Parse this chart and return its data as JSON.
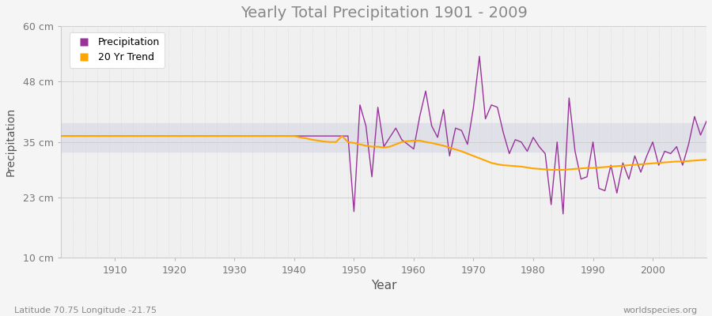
{
  "title": "Yearly Total Precipitation 1901 - 2009",
  "ylabel": "Precipitation",
  "xlabel": "Year",
  "subtitle_left": "Latitude 70.75 Longitude -21.75",
  "subtitle_right": "worldspecies.org",
  "bg_color": "#f5f5f5",
  "plot_bg_color": "#f0f0f0",
  "band_color": "#e0e0e8",
  "precip_color": "#993399",
  "trend_color": "#FFA500",
  "ylim": [
    10,
    60
  ],
  "yticks": [
    10,
    23,
    35,
    48,
    60
  ],
  "ytick_labels": [
    "10 cm",
    "23 cm",
    "35 cm",
    "48 cm",
    "60 cm"
  ],
  "xlim": [
    1901,
    2009
  ],
  "xticks": [
    1910,
    1920,
    1930,
    1940,
    1950,
    1960,
    1970,
    1980,
    1990,
    2000
  ],
  "years": [
    1901,
    1902,
    1903,
    1904,
    1905,
    1906,
    1907,
    1908,
    1909,
    1910,
    1911,
    1912,
    1913,
    1914,
    1915,
    1916,
    1917,
    1918,
    1919,
    1920,
    1921,
    1922,
    1923,
    1924,
    1925,
    1926,
    1927,
    1928,
    1929,
    1930,
    1931,
    1932,
    1933,
    1934,
    1935,
    1936,
    1937,
    1938,
    1939,
    1940,
    1941,
    1942,
    1943,
    1944,
    1945,
    1946,
    1947,
    1948,
    1949,
    1950,
    1951,
    1952,
    1953,
    1954,
    1955,
    1956,
    1957,
    1958,
    1959,
    1960,
    1961,
    1962,
    1963,
    1964,
    1965,
    1966,
    1967,
    1968,
    1969,
    1970,
    1971,
    1972,
    1973,
    1974,
    1975,
    1976,
    1977,
    1978,
    1979,
    1980,
    1981,
    1982,
    1983,
    1984,
    1985,
    1986,
    1987,
    1988,
    1989,
    1990,
    1991,
    1992,
    1993,
    1994,
    1995,
    1996,
    1997,
    1998,
    1999,
    2000,
    2001,
    2002,
    2003,
    2004,
    2005,
    2006,
    2007,
    2008,
    2009
  ],
  "precip": [
    36.3,
    36.3,
    36.3,
    36.3,
    36.3,
    36.3,
    36.3,
    36.3,
    36.3,
    36.3,
    36.3,
    36.3,
    36.3,
    36.3,
    36.3,
    36.3,
    36.3,
    36.3,
    36.3,
    36.3,
    36.3,
    36.3,
    36.3,
    36.3,
    36.3,
    36.3,
    36.3,
    36.3,
    36.3,
    36.3,
    36.3,
    36.3,
    36.3,
    36.3,
    36.3,
    36.3,
    36.3,
    36.3,
    36.3,
    36.3,
    36.3,
    36.3,
    36.3,
    36.3,
    36.3,
    36.3,
    36.3,
    36.3,
    36.3,
    20.0,
    43.0,
    38.5,
    27.5,
    42.5,
    34.0,
    36.0,
    38.0,
    35.5,
    34.5,
    33.5,
    40.5,
    46.0,
    38.5,
    36.0,
    42.0,
    32.0,
    38.0,
    37.5,
    34.5,
    42.5,
    53.5,
    40.0,
    43.0,
    42.5,
    37.0,
    32.5,
    35.5,
    35.0,
    33.0,
    36.0,
    34.0,
    32.5,
    21.5,
    35.0,
    19.5,
    44.5,
    33.0,
    27.0,
    27.5,
    35.0,
    25.0,
    24.5,
    30.0,
    24.0,
    30.5,
    27.0,
    32.0,
    28.5,
    32.0,
    35.0,
    30.0,
    33.0,
    32.5,
    34.0,
    30.0,
    34.5,
    40.5,
    36.5,
    39.5
  ],
  "trend": [
    36.3,
    36.3,
    36.3,
    36.3,
    36.3,
    36.3,
    36.3,
    36.3,
    36.3,
    36.3,
    36.3,
    36.3,
    36.3,
    36.3,
    36.3,
    36.3,
    36.3,
    36.3,
    36.3,
    36.3,
    36.3,
    36.3,
    36.3,
    36.3,
    36.3,
    36.3,
    36.3,
    36.3,
    36.3,
    36.3,
    36.3,
    36.3,
    36.3,
    36.3,
    36.3,
    36.3,
    36.3,
    36.3,
    36.3,
    36.3,
    36.0,
    35.8,
    35.5,
    35.3,
    35.1,
    35.0,
    35.0,
    36.3,
    35.0,
    34.8,
    34.5,
    34.2,
    34.0,
    34.0,
    33.8,
    34.0,
    34.5,
    35.0,
    35.2,
    35.3,
    35.3,
    35.0,
    34.8,
    34.5,
    34.2,
    33.8,
    33.4,
    33.0,
    32.5,
    32.0,
    31.5,
    31.0,
    30.5,
    30.2,
    30.0,
    29.9,
    29.8,
    29.7,
    29.5,
    29.3,
    29.2,
    29.1,
    29.0,
    29.0,
    29.0,
    29.1,
    29.2,
    29.3,
    29.4,
    29.4,
    29.5,
    29.6,
    29.7,
    29.8,
    29.9,
    30.0,
    30.1,
    30.2,
    30.3,
    30.4,
    30.5,
    30.6,
    30.7,
    30.8,
    30.8,
    30.9,
    31.0,
    31.1,
    31.2
  ]
}
